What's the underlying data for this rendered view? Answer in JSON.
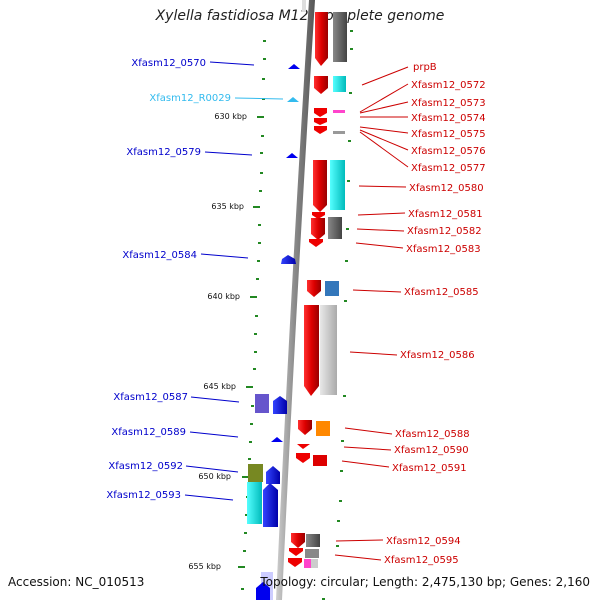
{
  "header": {
    "title": "Xylella fastidiosa M12, complete genome"
  },
  "footer": {
    "accession": "Accession: NC_010513",
    "summary": "Topology: circular; Length: 2,475,130 bp; Genes: 2,160"
  },
  "scale_ticks": [
    {
      "label": "630 kbp"
    },
    {
      "label": "635 kbp"
    },
    {
      "label": "640 kbp"
    },
    {
      "label": "645 kbp"
    },
    {
      "label": "650 kbp"
    },
    {
      "label": "655 kbp"
    }
  ],
  "left_labels": [
    {
      "text": "Xfasm12_0570",
      "color": "#0000cc"
    },
    {
      "text": "Xfasm12_R0029",
      "color": "#33bbee"
    },
    {
      "text": "Xfasm12_0579",
      "color": "#0000cc"
    },
    {
      "text": "Xfasm12_0584",
      "color": "#0000cc"
    },
    {
      "text": "Xfasm12_0587",
      "color": "#0000cc"
    },
    {
      "text": "Xfasm12_0589",
      "color": "#0000cc"
    },
    {
      "text": "Xfasm12_0592",
      "color": "#0000cc"
    },
    {
      "text": "Xfasm12_0593",
      "color": "#0000cc"
    }
  ],
  "right_labels": [
    {
      "text": "prpB"
    },
    {
      "text": "Xfasm12_0572"
    },
    {
      "text": "Xfasm12_0573"
    },
    {
      "text": "Xfasm12_0574"
    },
    {
      "text": "Xfasm12_0575"
    },
    {
      "text": "Xfasm12_0576"
    },
    {
      "text": "Xfasm12_0577"
    },
    {
      "text": "Xfasm12_0580"
    },
    {
      "text": "Xfasm12_0581"
    },
    {
      "text": "Xfasm12_0582"
    },
    {
      "text": "Xfasm12_0583"
    },
    {
      "text": "Xfasm12_0585"
    },
    {
      "text": "Xfasm12_0586"
    },
    {
      "text": "Xfasm12_0588"
    },
    {
      "text": "Xfasm12_0590"
    },
    {
      "text": "Xfasm12_0591"
    },
    {
      "text": "Xfasm12_0594"
    },
    {
      "text": "Xfasm12_0595"
    }
  ],
  "colors": {
    "forward": "#ee0000",
    "reverse": "#0000ee",
    "label_right": "#cc0000",
    "backbone": "#999999"
  }
}
